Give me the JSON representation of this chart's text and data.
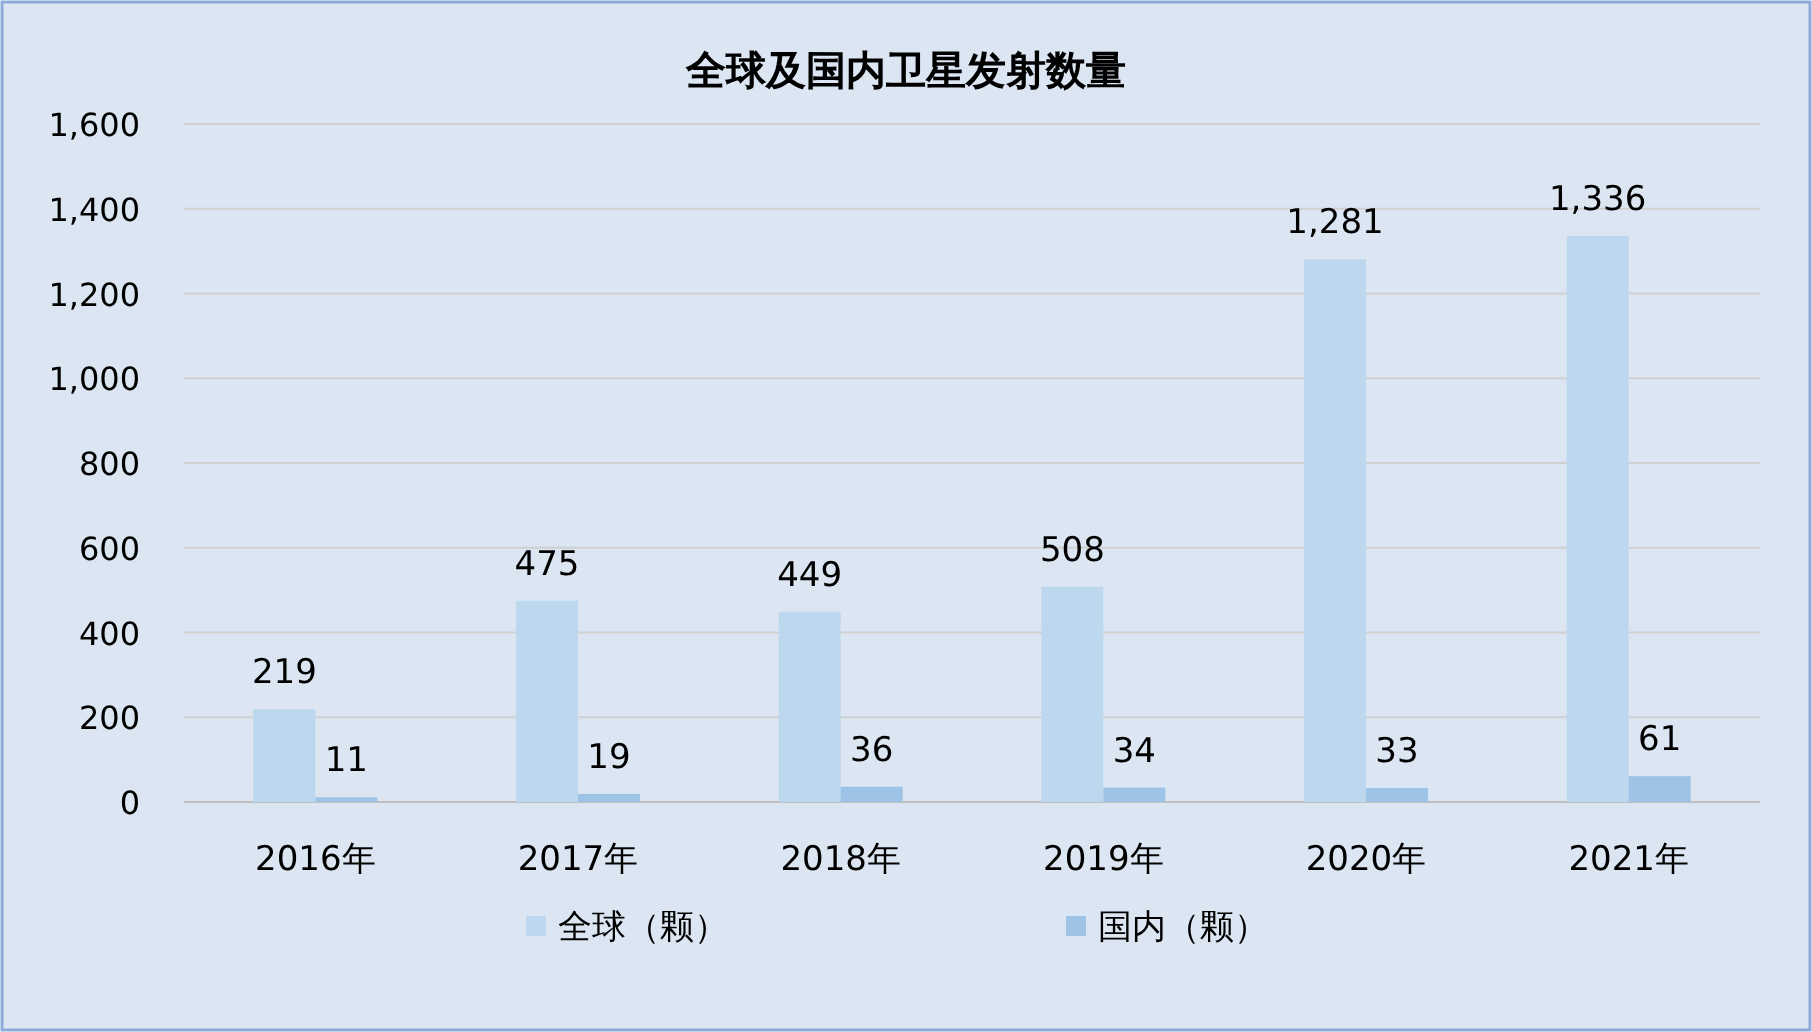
{
  "chart_data": {
    "type": "bar",
    "title": "全球及国内卫星发射数量",
    "categories": [
      "2016年",
      "2017年",
      "2018年",
      "2019年",
      "2020年",
      "2021年"
    ],
    "series": [
      {
        "name": "全球（颗）",
        "color": "#bdd7ee",
        "values": [
          219,
          475,
          449,
          508,
          1281,
          1336
        ],
        "value_labels": [
          "219",
          "475",
          "449",
          "508",
          "1,281",
          "1,336"
        ]
      },
      {
        "name": "国内（颗）",
        "color": "#9dc3e6",
        "values": [
          11,
          19,
          36,
          34,
          33,
          61
        ],
        "value_labels": [
          "11",
          "19",
          "36",
          "34",
          "33",
          "61"
        ]
      }
    ],
    "ylim": [
      0,
      1600
    ],
    "yticks": [
      0,
      200,
      400,
      600,
      800,
      {
        "value": 1000,
        "label": "1,000"
      },
      {
        "value": 1200,
        "label": "1,200"
      },
      {
        "value": 1400,
        "label": "1,400"
      },
      {
        "value": 1600,
        "label": "1,600"
      }
    ],
    "grid": "y",
    "legend": "bottom"
  }
}
